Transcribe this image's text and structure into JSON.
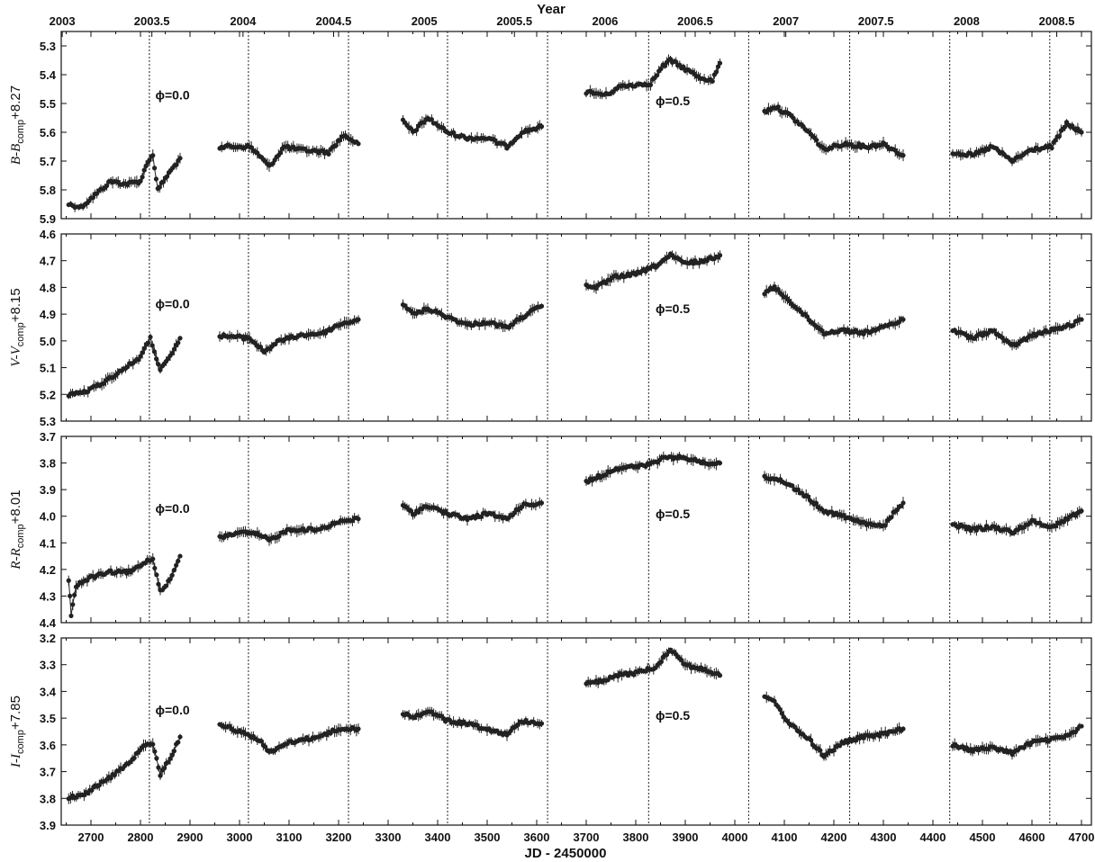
{
  "chart_data": {
    "type": "scatter",
    "top_axis": {
      "title": "Year",
      "ticks": [
        {
          "jd": 2642,
          "label": "2003"
        },
        {
          "jd": 2823,
          "label": "2003.5"
        },
        {
          "jd": 3007,
          "label": "2004"
        },
        {
          "jd": 3190,
          "label": "2004.5"
        },
        {
          "jd": 3373,
          "label": "2005"
        },
        {
          "jd": 3555,
          "label": "2005.5"
        },
        {
          "jd": 3738,
          "label": "2006"
        },
        {
          "jd": 3920,
          "label": "2006.5"
        },
        {
          "jd": 4103,
          "label": "2007"
        },
        {
          "jd": 4285,
          "label": "2007.5"
        },
        {
          "jd": 4468,
          "label": "2008"
        },
        {
          "jd": 4650,
          "label": "2008.5"
        }
      ]
    },
    "xlabel": "JD - 2450000",
    "xlim": [
      2640,
      4720
    ],
    "xticks": [
      2700,
      2800,
      2900,
      3000,
      3100,
      3200,
      3300,
      3400,
      3500,
      3600,
      3700,
      3800,
      3900,
      4000,
      4100,
      4200,
      4300,
      4400,
      4500,
      4600,
      4700
    ],
    "phase_lines": [
      2818,
      3018,
      3220,
      3420,
      3622,
      3826,
      4028,
      4232,
      4434,
      4636
    ],
    "panels": [
      {
        "ylabel_main": "B-B",
        "ylabel_sub": "comp",
        "ylabel_tail": "+8.27",
        "ylim": [
          5.9,
          5.25
        ],
        "yticks": [
          5.3,
          5.4,
          5.5,
          5.6,
          5.7,
          5.8,
          5.9
        ],
        "phase0": {
          "text": "ϕ=0.0",
          "jd": 2830,
          "y": 5.47
        },
        "phase5": {
          "text": "ϕ=0.5",
          "jd": 3840,
          "y": 5.49
        },
        "knots": [
          [
            2655,
            5.85
          ],
          [
            2680,
            5.86
          ],
          [
            2700,
            5.83
          ],
          [
            2740,
            5.77
          ],
          [
            2770,
            5.78
          ],
          [
            2800,
            5.77
          ],
          [
            2815,
            5.7
          ],
          [
            2825,
            5.68
          ],
          [
            2835,
            5.8
          ],
          [
            2850,
            5.76
          ],
          [
            2880,
            5.69
          ],
          null,
          [
            2960,
            5.65
          ],
          [
            3020,
            5.65
          ],
          [
            3040,
            5.68
          ],
          [
            3060,
            5.72
          ],
          [
            3090,
            5.65
          ],
          [
            3120,
            5.66
          ],
          [
            3180,
            5.67
          ],
          [
            3210,
            5.61
          ],
          [
            3240,
            5.64
          ],
          null,
          [
            3330,
            5.56
          ],
          [
            3350,
            5.6
          ],
          [
            3380,
            5.55
          ],
          [
            3420,
            5.6
          ],
          [
            3460,
            5.62
          ],
          [
            3500,
            5.62
          ],
          [
            3540,
            5.65
          ],
          [
            3570,
            5.6
          ],
          [
            3610,
            5.58
          ],
          null,
          [
            3700,
            5.46
          ],
          [
            3740,
            5.47
          ],
          [
            3770,
            5.44
          ],
          [
            3830,
            5.43
          ],
          [
            3855,
            5.37
          ],
          [
            3870,
            5.35
          ],
          [
            3900,
            5.38
          ],
          [
            3930,
            5.41
          ],
          [
            3955,
            5.42
          ],
          [
            3970,
            5.36
          ],
          null,
          [
            4060,
            5.53
          ],
          [
            4080,
            5.51
          ],
          [
            4110,
            5.54
          ],
          [
            4150,
            5.6
          ],
          [
            4180,
            5.66
          ],
          [
            4220,
            5.64
          ],
          [
            4270,
            5.65
          ],
          [
            4300,
            5.64
          ],
          [
            4340,
            5.68
          ],
          null,
          [
            4440,
            5.67
          ],
          [
            4480,
            5.68
          ],
          [
            4520,
            5.65
          ],
          [
            4560,
            5.7
          ],
          [
            4600,
            5.66
          ],
          [
            4640,
            5.65
          ],
          [
            4670,
            5.57
          ],
          [
            4700,
            5.6
          ]
        ]
      },
      {
        "ylabel_main": "V-V",
        "ylabel_sub": "comp",
        "ylabel_tail": "+8.15",
        "ylim": [
          5.3,
          4.6
        ],
        "yticks": [
          4.6,
          4.7,
          4.8,
          4.9,
          5.0,
          5.1,
          5.2,
          5.3
        ],
        "phase0": {
          "text": "ϕ=0.0",
          "jd": 2830,
          "y": 4.86
        },
        "phase5": {
          "text": "ϕ=0.5",
          "jd": 3840,
          "y": 4.88
        },
        "knots": [
          [
            2655,
            5.2
          ],
          [
            2690,
            5.19
          ],
          [
            2730,
            5.15
          ],
          [
            2770,
            5.1
          ],
          [
            2800,
            5.06
          ],
          [
            2820,
            4.99
          ],
          [
            2840,
            5.11
          ],
          [
            2860,
            5.06
          ],
          [
            2880,
            4.99
          ],
          null,
          [
            2960,
            4.98
          ],
          [
            3020,
            4.99
          ],
          [
            3050,
            5.04
          ],
          [
            3080,
            5.0
          ],
          [
            3120,
            4.98
          ],
          [
            3170,
            4.97
          ],
          [
            3200,
            4.94
          ],
          [
            3240,
            4.92
          ],
          null,
          [
            3330,
            4.86
          ],
          [
            3350,
            4.9
          ],
          [
            3380,
            4.88
          ],
          [
            3420,
            4.91
          ],
          [
            3460,
            4.94
          ],
          [
            3500,
            4.93
          ],
          [
            3540,
            4.95
          ],
          [
            3580,
            4.9
          ],
          [
            3610,
            4.87
          ],
          null,
          [
            3700,
            4.79
          ],
          [
            3720,
            4.8
          ],
          [
            3760,
            4.76
          ],
          [
            3800,
            4.75
          ],
          [
            3840,
            4.72
          ],
          [
            3870,
            4.68
          ],
          [
            3900,
            4.71
          ],
          [
            3940,
            4.7
          ],
          [
            3970,
            4.68
          ],
          null,
          [
            4060,
            4.82
          ],
          [
            4080,
            4.8
          ],
          [
            4110,
            4.85
          ],
          [
            4150,
            4.92
          ],
          [
            4180,
            4.97
          ],
          [
            4220,
            4.96
          ],
          [
            4260,
            4.97
          ],
          [
            4300,
            4.95
          ],
          [
            4340,
            4.92
          ],
          null,
          [
            4440,
            4.96
          ],
          [
            4480,
            4.99
          ],
          [
            4520,
            4.96
          ],
          [
            4560,
            5.02
          ],
          [
            4600,
            4.98
          ],
          [
            4640,
            4.96
          ],
          [
            4680,
            4.94
          ],
          [
            4700,
            4.92
          ]
        ]
      },
      {
        "ylabel_main": "R-R",
        "ylabel_sub": "comp",
        "ylabel_tail": "+8.01",
        "ylim": [
          4.4,
          3.7
        ],
        "yticks": [
          3.7,
          3.8,
          3.9,
          4.0,
          4.1,
          4.2,
          4.3,
          4.4
        ],
        "phase0": {
          "text": "ϕ=0.0",
          "jd": 2830,
          "y": 3.97
        },
        "phase5": {
          "text": "ϕ=0.5",
          "jd": 3840,
          "y": 3.99
        },
        "knots": [
          [
            2655,
            4.24
          ],
          [
            2660,
            4.37
          ],
          [
            2670,
            4.26
          ],
          [
            2700,
            4.23
          ],
          [
            2740,
            4.21
          ],
          [
            2780,
            4.21
          ],
          [
            2810,
            4.17
          ],
          [
            2825,
            4.16
          ],
          [
            2840,
            4.28
          ],
          [
            2860,
            4.24
          ],
          [
            2880,
            4.15
          ],
          null,
          [
            2960,
            4.08
          ],
          [
            3000,
            4.06
          ],
          [
            3040,
            4.07
          ],
          [
            3060,
            4.09
          ],
          [
            3100,
            4.05
          ],
          [
            3160,
            4.05
          ],
          [
            3200,
            4.02
          ],
          [
            3240,
            4.01
          ],
          null,
          [
            3330,
            3.96
          ],
          [
            3350,
            3.99
          ],
          [
            3380,
            3.96
          ],
          [
            3420,
            3.99
          ],
          [
            3460,
            4.01
          ],
          [
            3500,
            3.99
          ],
          [
            3540,
            4.01
          ],
          [
            3570,
            3.96
          ],
          [
            3610,
            3.95
          ],
          null,
          [
            3700,
            3.87
          ],
          [
            3740,
            3.84
          ],
          [
            3760,
            3.82
          ],
          [
            3820,
            3.81
          ],
          [
            3860,
            3.78
          ],
          [
            3900,
            3.78
          ],
          [
            3940,
            3.8
          ],
          [
            3970,
            3.8
          ],
          null,
          [
            4060,
            3.85
          ],
          [
            4100,
            3.87
          ],
          [
            4140,
            3.92
          ],
          [
            4180,
            3.98
          ],
          [
            4220,
            4.0
          ],
          [
            4270,
            4.03
          ],
          [
            4300,
            4.04
          ],
          [
            4320,
            3.99
          ],
          [
            4340,
            3.95
          ],
          null,
          [
            4440,
            4.03
          ],
          [
            4480,
            4.05
          ],
          [
            4520,
            4.04
          ],
          [
            4560,
            4.06
          ],
          [
            4600,
            4.02
          ],
          [
            4640,
            4.04
          ],
          [
            4680,
            4.0
          ],
          [
            4700,
            3.98
          ]
        ]
      },
      {
        "ylabel_main": "I-I",
        "ylabel_sub": "comp",
        "ylabel_tail": "+7.85",
        "ylim": [
          3.9,
          3.2
        ],
        "yticks": [
          3.2,
          3.3,
          3.4,
          3.5,
          3.6,
          3.7,
          3.8,
          3.9
        ],
        "phase0": {
          "text": "ϕ=0.0",
          "jd": 2830,
          "y": 3.47
        },
        "phase5": {
          "text": "ϕ=0.5",
          "jd": 3840,
          "y": 3.49
        },
        "knots": [
          [
            2655,
            3.8
          ],
          [
            2690,
            3.78
          ],
          [
            2740,
            3.72
          ],
          [
            2780,
            3.66
          ],
          [
            2810,
            3.6
          ],
          [
            2825,
            3.6
          ],
          [
            2840,
            3.71
          ],
          [
            2860,
            3.65
          ],
          [
            2880,
            3.57
          ],
          null,
          [
            2960,
            3.52
          ],
          [
            3000,
            3.55
          ],
          [
            3040,
            3.58
          ],
          [
            3060,
            3.63
          ],
          [
            3100,
            3.59
          ],
          [
            3160,
            3.57
          ],
          [
            3200,
            3.54
          ],
          [
            3240,
            3.54
          ],
          null,
          [
            3330,
            3.48
          ],
          [
            3350,
            3.5
          ],
          [
            3380,
            3.47
          ],
          [
            3420,
            3.51
          ],
          [
            3460,
            3.52
          ],
          [
            3500,
            3.54
          ],
          [
            3540,
            3.56
          ],
          [
            3570,
            3.51
          ],
          [
            3610,
            3.52
          ],
          null,
          [
            3700,
            3.37
          ],
          [
            3740,
            3.36
          ],
          [
            3760,
            3.34
          ],
          [
            3800,
            3.33
          ],
          [
            3840,
            3.31
          ],
          [
            3870,
            3.24
          ],
          [
            3900,
            3.3
          ],
          [
            3940,
            3.32
          ],
          [
            3970,
            3.34
          ],
          null,
          [
            4060,
            3.42
          ],
          [
            4080,
            3.44
          ],
          [
            4110,
            3.52
          ],
          [
            4150,
            3.58
          ],
          [
            4180,
            3.64
          ],
          [
            4220,
            3.59
          ],
          [
            4260,
            3.57
          ],
          [
            4300,
            3.56
          ],
          [
            4340,
            3.54
          ],
          null,
          [
            4440,
            3.6
          ],
          [
            4480,
            3.62
          ],
          [
            4520,
            3.61
          ],
          [
            4560,
            3.63
          ],
          [
            4600,
            3.59
          ],
          [
            4640,
            3.58
          ],
          [
            4680,
            3.56
          ],
          [
            4700,
            3.53
          ]
        ]
      }
    ]
  }
}
